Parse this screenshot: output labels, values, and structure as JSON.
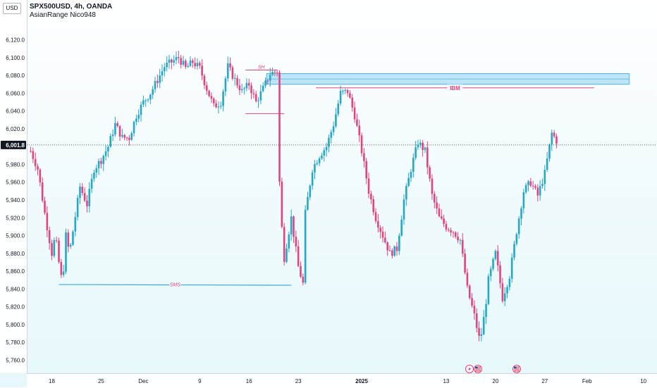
{
  "header": {
    "symbol_line": "SPX500USD, 4h, OANDA",
    "indicator_line": "AsianRange Nico948"
  },
  "currency_badge": "USD",
  "colors": {
    "bull": "#24a7c8",
    "bear": "#e3437f",
    "zone_fill": "#a9dcf2",
    "zone_border": "#4fb3e0",
    "current_price_line": "#2a2e39",
    "level_line": "#e3437f",
    "sms_line": "#3ca9dd"
  },
  "icons": [
    "flash-event-icon",
    "us-flag-event-icon",
    "us-flag-event-icon"
  ],
  "chart_data": {
    "type": "candlestick",
    "ylim": [
      5750,
      6130
    ],
    "y_ticks": [
      "6,120.0",
      "6,100.0",
      "6,080.0",
      "6,060.0",
      "6,040.0",
      "6,020.0",
      "5,980.0",
      "5,960.0",
      "5,940.0",
      "5,920.0",
      "5,900.0",
      "5,880.0",
      "5,860.0",
      "5,840.0",
      "5,820.0",
      "5,800.0",
      "5,780.0",
      "5,760.0"
    ],
    "y_tick_values": [
      6120,
      6100,
      6080,
      6060,
      6040,
      6020,
      5980,
      5960,
      5940,
      5920,
      5900,
      5880,
      5860,
      5840,
      5820,
      5800,
      5780,
      5760
    ],
    "x_labels": [
      {
        "label": "18",
        "t": 0
      },
      {
        "label": "25",
        "t": 7
      },
      {
        "label": "Dec",
        "t": 13
      },
      {
        "label": "9",
        "t": 21
      },
      {
        "label": "16",
        "t": 28
      },
      {
        "label": "23",
        "t": 35
      },
      {
        "label": "2025",
        "t": 44
      },
      {
        "label": "13",
        "t": 56
      },
      {
        "label": "20",
        "t": 63
      },
      {
        "label": "27",
        "t": 70
      },
      {
        "label": "Feb",
        "t": 76
      },
      {
        "label": "10",
        "t": 84
      }
    ],
    "current_price": {
      "label": "6,001.8",
      "value": 6001.8
    },
    "path": [
      [
        -3,
        5995
      ],
      [
        -2,
        5975
      ],
      [
        -1,
        5925
      ],
      [
        0,
        5880
      ],
      [
        0.5,
        5900
      ],
      [
        1,
        5870
      ],
      [
        1.5,
        5845
      ],
      [
        2,
        5900
      ],
      [
        2.5,
        5880
      ],
      [
        3,
        5905
      ],
      [
        3.5,
        5930
      ],
      [
        4,
        5955
      ],
      [
        5,
        5935
      ],
      [
        6,
        5975
      ],
      [
        7,
        5985
      ],
      [
        8,
        6000
      ],
      [
        9,
        6025
      ],
      [
        10,
        6010
      ],
      [
        11,
        6010
      ],
      [
        12,
        6035
      ],
      [
        13,
        6050
      ],
      [
        14,
        6060
      ],
      [
        15,
        6075
      ],
      [
        16,
        6090
      ],
      [
        17,
        6095
      ],
      [
        18,
        6100
      ],
      [
        19,
        6088
      ],
      [
        20,
        6095
      ],
      [
        21,
        6088
      ],
      [
        22,
        6065
      ],
      [
        23,
        6045
      ],
      [
        24,
        6050
      ],
      [
        25,
        6090
      ],
      [
        26,
        6075
      ],
      [
        27,
        6062
      ],
      [
        28,
        6070
      ],
      [
        29,
        6050
      ],
      [
        30,
        6065
      ],
      [
        31,
        6082
      ],
      [
        32,
        6085
      ],
      [
        32.4,
        5935
      ],
      [
        33,
        5875
      ],
      [
        34,
        5920
      ],
      [
        35,
        5865
      ],
      [
        35.7,
        5845
      ],
      [
        36,
        5925
      ],
      [
        37,
        5975
      ],
      [
        38,
        5990
      ],
      [
        39,
        6000
      ],
      [
        40,
        6025
      ],
      [
        41,
        6060
      ],
      [
        42,
        6062
      ],
      [
        43,
        6035
      ],
      [
        44,
        5995
      ],
      [
        45,
        5950
      ],
      [
        46,
        5920
      ],
      [
        47,
        5900
      ],
      [
        48,
        5880
      ],
      [
        49,
        5885
      ],
      [
        50,
        5940
      ],
      [
        51,
        5975
      ],
      [
        52,
        6005
      ],
      [
        53,
        5995
      ],
      [
        54,
        5945
      ],
      [
        55,
        5920
      ],
      [
        56,
        5910
      ],
      [
        57,
        5905
      ],
      [
        58,
        5895
      ],
      [
        59,
        5840
      ],
      [
        60,
        5810
      ],
      [
        60.8,
        5780
      ],
      [
        61.5,
        5815
      ],
      [
        62,
        5850
      ],
      [
        63,
        5880
      ],
      [
        64,
        5830
      ],
      [
        65,
        5855
      ],
      [
        66,
        5905
      ],
      [
        67,
        5950
      ],
      [
        68,
        5960
      ],
      [
        69,
        5945
      ],
      [
        70,
        5970
      ],
      [
        71,
        6015
      ],
      [
        71.8,
        6005
      ]
    ],
    "annotations": {
      "supply_zone": {
        "label": "",
        "y_top": 6082,
        "y_bottom": 6070,
        "t_start": 30.5,
        "t_end": 82
      },
      "ibm_line": {
        "label": "IBM",
        "y": 6066,
        "t_start": 37.5,
        "t_end": 77
      },
      "sh_label": {
        "label": "SH",
        "y": 6086,
        "t_start": 27.5,
        "t_end": 32
      },
      "sh_range_line": {
        "y": 6037,
        "t_start": 27.5,
        "t_end": 33
      },
      "sms_line": {
        "label": "SMS",
        "y": 5845,
        "t_start": 1,
        "t_end": 34
      }
    }
  }
}
